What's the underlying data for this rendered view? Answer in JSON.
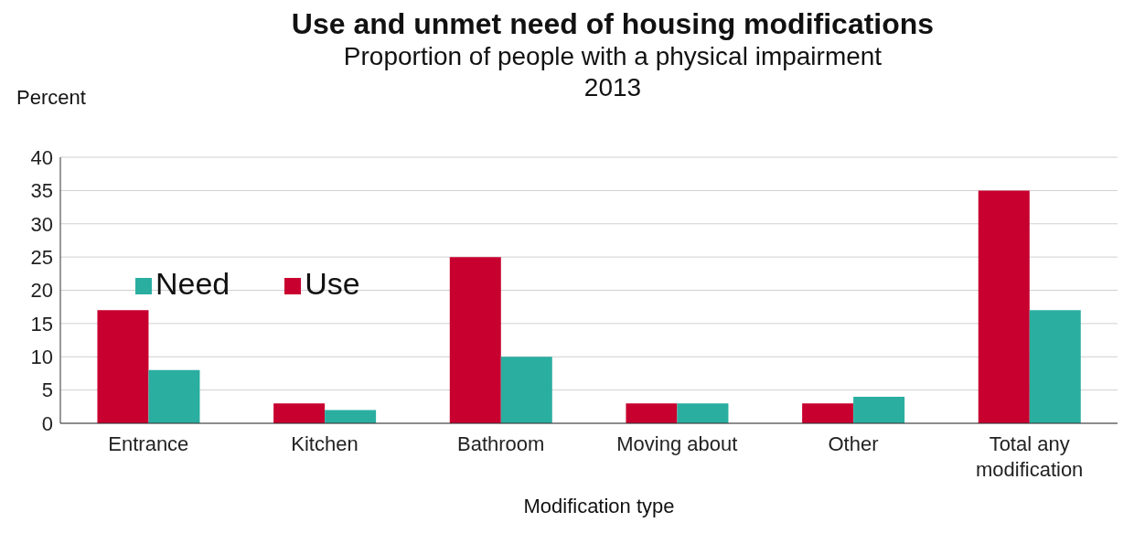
{
  "chart_data": {
    "type": "bar",
    "title": "Use and unmet need of housing modifications",
    "subtitle": "Proportion of people with a physical impairment\n2013",
    "ylabel": "Percent",
    "xlabel": "Modification type",
    "categories": [
      "Entrance",
      "Kitchen",
      "Bathroom",
      "Moving about",
      "Other",
      "Total any modification"
    ],
    "series": [
      {
        "name": "Use",
        "color": "#c8002f",
        "values": [
          17,
          3,
          25,
          3,
          3,
          35
        ]
      },
      {
        "name": "Need",
        "color": "#2aaea0",
        "values": [
          8,
          2,
          10,
          3,
          4,
          17
        ]
      }
    ],
    "ylim": [
      0,
      40
    ],
    "yticks": [
      0,
      5,
      10,
      15,
      20,
      25,
      30,
      35,
      40
    ],
    "grid": "y",
    "legend": "top left"
  }
}
